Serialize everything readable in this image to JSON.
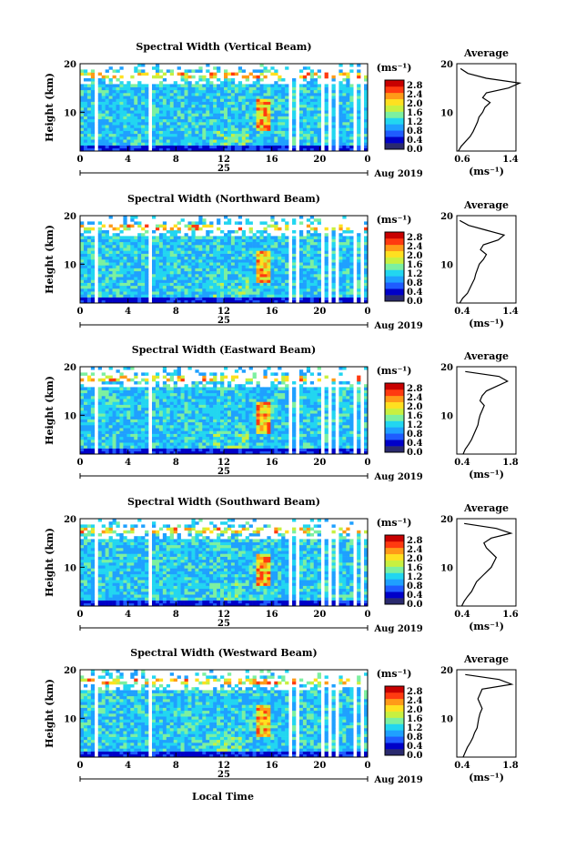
{
  "figure": {
    "xlabel": "Local Time",
    "date_label": "Aug 2019",
    "day_label": "25",
    "ylabel": "Height (km)",
    "colorbar_unit": "(ms⁻¹)",
    "avg_title": "Average",
    "avg_xlabel": "(ms⁻¹)",
    "x_ticks": [
      "0",
      "4",
      "8",
      "12",
      "16",
      "20",
      "0"
    ],
    "y_ticks": [
      "20",
      "10"
    ],
    "colorbar_ticks": [
      "2.8",
      "2.4",
      "2.0",
      "1.6",
      "1.2",
      "0.8",
      "0.4",
      "0.0"
    ],
    "colorbar_colors": [
      "#2a2a6e",
      "#0000c8",
      "#1f5cff",
      "#1fa0ff",
      "#22d6f0",
      "#7cf0a0",
      "#c8f040",
      "#ffe020",
      "#ff9a18",
      "#ff3a10",
      "#c80000"
    ]
  },
  "chart_data": [
    {
      "type": "heatmap",
      "title": "Spectral Width (Vertical Beam)",
      "x_range": [
        0,
        24
      ],
      "y_range": [
        2,
        20
      ],
      "color_range": [
        0.0,
        3.0
      ],
      "description_values": "spectral width time-height map",
      "average": {
        "xlim": [
          0.6,
          1.4
        ],
        "x_ticks": [
          "0.6",
          "1.4"
        ],
        "height": [
          2,
          3,
          4,
          5,
          6,
          7,
          8,
          9,
          10,
          11,
          12,
          13,
          14,
          15,
          16,
          17,
          18,
          19
        ],
        "value": [
          0.62,
          0.66,
          0.72,
          0.78,
          0.82,
          0.85,
          0.88,
          0.9,
          0.95,
          0.98,
          1.05,
          0.95,
          1.0,
          1.3,
          1.45,
          1.0,
          0.75,
          0.65
        ]
      }
    },
    {
      "type": "heatmap",
      "title": "Spectral Width (Northward Beam)",
      "x_range": [
        0,
        24
      ],
      "y_range": [
        2,
        20
      ],
      "color_range": [
        0.0,
        3.0
      ],
      "average": {
        "xlim": [
          0.4,
          1.4
        ],
        "x_ticks": [
          "0.4",
          "1.4"
        ],
        "height": [
          2,
          3,
          4,
          5,
          6,
          7,
          8,
          9,
          10,
          11,
          12,
          13,
          14,
          15,
          16,
          17,
          18,
          19
        ],
        "value": [
          0.45,
          0.5,
          0.58,
          0.62,
          0.66,
          0.7,
          0.72,
          0.75,
          0.78,
          0.85,
          0.9,
          0.8,
          0.85,
          1.1,
          1.2,
          0.9,
          0.6,
          0.45
        ]
      }
    },
    {
      "type": "heatmap",
      "title": "Spectral Width (Eastward Beam)",
      "x_range": [
        0,
        24
      ],
      "y_range": [
        2,
        20
      ],
      "color_range": [
        0.0,
        3.0
      ],
      "average": {
        "xlim": [
          0.4,
          1.8
        ],
        "x_ticks": [
          "0.4",
          "1.8"
        ],
        "height": [
          2,
          3,
          4,
          5,
          6,
          7,
          8,
          9,
          10,
          11,
          12,
          13,
          14,
          15,
          16,
          17,
          18,
          19
        ],
        "value": [
          0.55,
          0.6,
          0.68,
          0.75,
          0.8,
          0.85,
          0.9,
          0.92,
          0.95,
          1.0,
          1.05,
          0.95,
          1.0,
          1.1,
          1.35,
          1.6,
          1.4,
          0.6
        ]
      }
    },
    {
      "type": "heatmap",
      "title": "Spectral Width (Southward Beam)",
      "x_range": [
        0,
        24
      ],
      "y_range": [
        2,
        20
      ],
      "color_range": [
        0.0,
        3.0
      ],
      "average": {
        "xlim": [
          0.4,
          1.6
        ],
        "x_ticks": [
          "0.4",
          "1.6"
        ],
        "height": [
          2,
          3,
          4,
          5,
          6,
          7,
          8,
          9,
          10,
          11,
          12,
          13,
          14,
          15,
          16,
          17,
          18,
          19
        ],
        "value": [
          0.5,
          0.55,
          0.62,
          0.7,
          0.75,
          0.8,
          0.9,
          1.0,
          1.1,
          1.15,
          1.2,
          1.1,
          1.0,
          0.95,
          1.1,
          1.5,
          1.2,
          0.55
        ]
      }
    },
    {
      "type": "heatmap",
      "title": "Spectral Width (Westward Beam)",
      "x_range": [
        0,
        24
      ],
      "y_range": [
        2,
        20
      ],
      "color_range": [
        0.0,
        3.0
      ],
      "average": {
        "xlim": [
          0.4,
          1.8
        ],
        "x_ticks": [
          "0.4",
          "1.8"
        ],
        "height": [
          2,
          3,
          4,
          5,
          6,
          7,
          8,
          9,
          10,
          11,
          12,
          13,
          14,
          15,
          16,
          17,
          18,
          19
        ],
        "value": [
          0.55,
          0.6,
          0.65,
          0.72,
          0.78,
          0.82,
          0.88,
          0.9,
          0.92,
          0.95,
          1.0,
          0.95,
          0.9,
          0.95,
          1.0,
          1.7,
          1.4,
          0.6
        ]
      }
    }
  ]
}
